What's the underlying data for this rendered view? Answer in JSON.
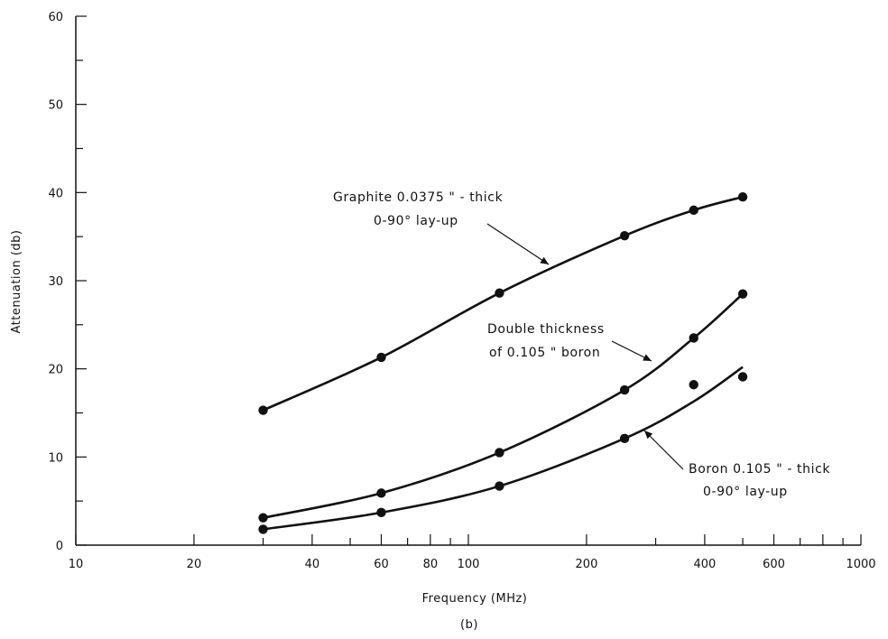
{
  "chart_data": {
    "type": "line",
    "title": "",
    "xlabel": "Frequency (MHz)",
    "ylabel": "Attenuation (db)",
    "caption": "(b)",
    "x_scale": "log",
    "xlim": [
      10,
      1000
    ],
    "ylim": [
      0,
      60
    ],
    "x_tick_labels": [
      "10",
      "20",
      "40",
      "60",
      "80",
      "100",
      "200",
      "400",
      "600",
      "1000"
    ],
    "y_tick_labels": [
      "0",
      "10",
      "20",
      "30",
      "40",
      "50",
      "60"
    ],
    "grid": false,
    "series": [
      {
        "id": "graphite",
        "points": [
          [
            30,
            15.3
          ],
          [
            60,
            21.3
          ],
          [
            120,
            28.6
          ],
          [
            250,
            35.1
          ],
          [
            375,
            38.0
          ],
          [
            500,
            39.5
          ]
        ]
      },
      {
        "id": "double-boron",
        "points": [
          [
            30,
            3.1
          ],
          [
            60,
            5.9
          ],
          [
            120,
            10.5
          ],
          [
            250,
            17.6
          ],
          [
            375,
            23.5
          ],
          [
            500,
            28.5
          ]
        ]
      },
      {
        "id": "boron",
        "points": [
          [
            30,
            1.8
          ],
          [
            60,
            3.7
          ],
          [
            120,
            6.7
          ],
          [
            250,
            12.1
          ],
          [
            375,
            18.2
          ],
          [
            500,
            19.1
          ]
        ]
      }
    ],
    "annotations": [
      {
        "series": "graphite",
        "lines": [
          "Graphite 0.0375 \" - thick",
          "0-90° lay-up"
        ]
      },
      {
        "series": "double-boron",
        "lines": [
          "Double thickness",
          "of 0.105 \" boron"
        ]
      },
      {
        "series": "boron",
        "lines": [
          "Boron 0.105 \" - thick",
          "0-90° lay-up"
        ]
      }
    ]
  }
}
